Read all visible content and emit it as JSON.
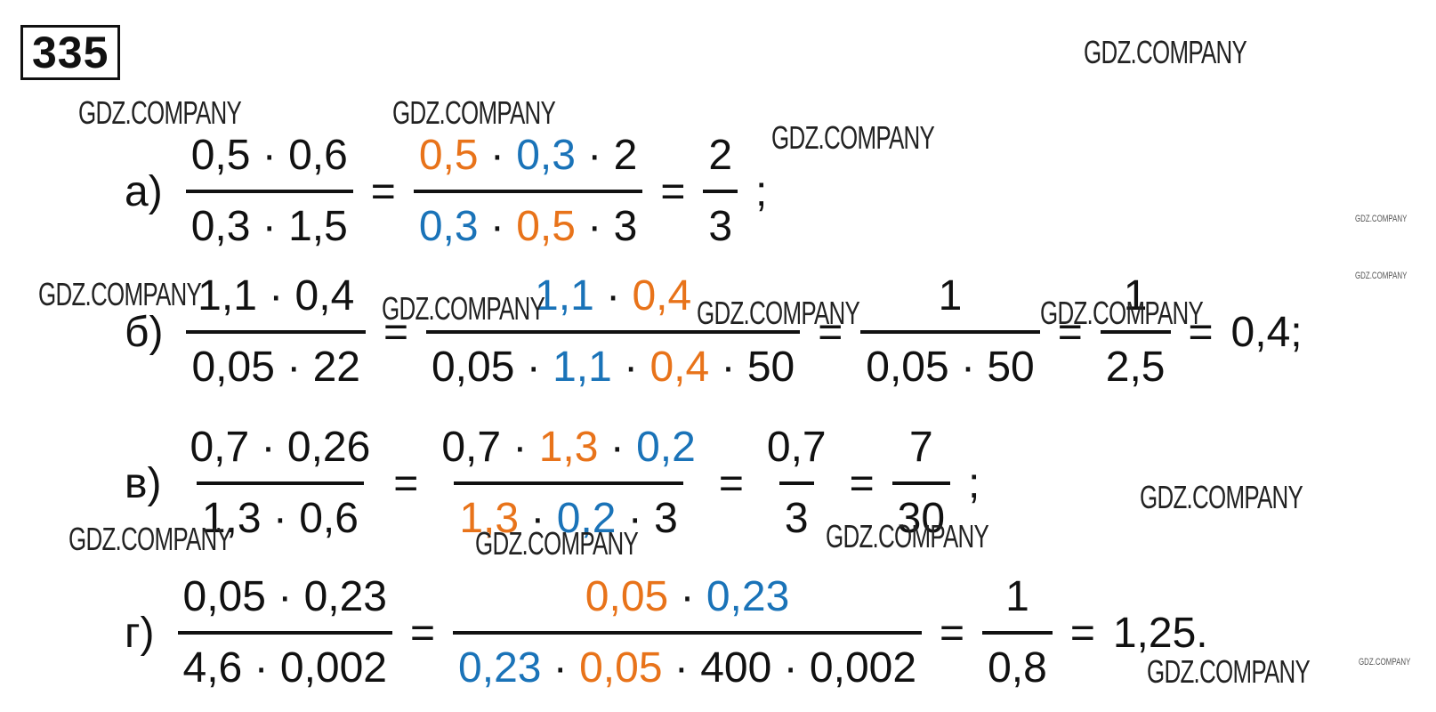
{
  "problem_number": "335",
  "rows": [
    {
      "label": "а)",
      "items": [
        {
          "num": [
            {
              "text": "0,5 · 0,6"
            }
          ],
          "den": [
            {
              "text": "0,3 · 1,5"
            }
          ]
        },
        {
          "text": "="
        },
        {
          "num": [
            {
              "text": "0,5",
              "color": "#e8731a"
            },
            {
              "text": " · "
            },
            {
              "text": "0,3",
              "color": "#1a73b8"
            },
            {
              "text": " · 2"
            }
          ],
          "den": [
            {
              "text": "0,3",
              "color": "#1a73b8"
            },
            {
              "text": " · "
            },
            {
              "text": "0,5",
              "color": "#e8731a"
            },
            {
              "text": " · 3"
            }
          ]
        },
        {
          "text": "="
        },
        {
          "num": [
            {
              "text": "2"
            }
          ],
          "den": [
            {
              "text": "3"
            }
          ]
        },
        {
          "text": ";"
        }
      ]
    },
    {
      "label": "б)",
      "items": [
        {
          "num": [
            {
              "text": "1,1 · 0,4"
            }
          ],
          "den": [
            {
              "text": "0,05 · 22"
            }
          ]
        },
        {
          "text": "="
        },
        {
          "num": [
            {
              "text": "1,1",
              "color": "#1a73b8"
            },
            {
              "text": " · "
            },
            {
              "text": "0,4",
              "color": "#e8731a"
            }
          ],
          "den": [
            {
              "text": "0,05 · "
            },
            {
              "text": "1,1",
              "color": "#1a73b8"
            },
            {
              "text": " · "
            },
            {
              "text": "0,4",
              "color": "#e8731a"
            },
            {
              "text": " · 50"
            }
          ]
        },
        {
          "text": "="
        },
        {
          "num": [
            {
              "text": "1"
            }
          ],
          "den": [
            {
              "text": "0,05 · 50"
            }
          ]
        },
        {
          "text": "="
        },
        {
          "num": [
            {
              "text": "1"
            }
          ],
          "den": [
            {
              "text": "2,5"
            }
          ]
        },
        {
          "text": "="
        },
        {
          "text": "0,4;"
        }
      ]
    },
    {
      "label": "в)",
      "items": [
        {
          "num": [
            {
              "text": "0,7 · 0,26"
            }
          ],
          "den": [
            {
              "text": "1,3 · 0,6"
            }
          ]
        },
        {
          "text": "="
        },
        {
          "num": [
            {
              "text": "0,7 · "
            },
            {
              "text": "1,3",
              "color": "#e8731a"
            },
            {
              "text": " · "
            },
            {
              "text": "0,2",
              "color": "#1a73b8"
            }
          ],
          "den": [
            {
              "text": "1,3",
              "color": "#e8731a"
            },
            {
              "text": " · "
            },
            {
              "text": "0,2",
              "color": "#1a73b8"
            },
            {
              "text": " · 3"
            }
          ]
        },
        {
          "text": "="
        },
        {
          "num": [
            {
              "text": "0,7"
            }
          ],
          "den": [
            {
              "text": "3"
            }
          ]
        },
        {
          "text": "="
        },
        {
          "num": [
            {
              "text": "7"
            }
          ],
          "den": [
            {
              "text": "30"
            }
          ]
        },
        {
          "text": ";"
        }
      ]
    },
    {
      "label": "г)",
      "items": [
        {
          "num": [
            {
              "text": "0,05 · 0,23"
            }
          ],
          "den": [
            {
              "text": "4,6 · 0,002"
            }
          ]
        },
        {
          "text": "="
        },
        {
          "num": [
            {
              "text": "0,05",
              "color": "#e8731a"
            },
            {
              "text": " · "
            },
            {
              "text": "0,23",
              "color": "#1a73b8"
            }
          ],
          "den": [
            {
              "text": "0,23",
              "color": "#1a73b8"
            },
            {
              "text": " · "
            },
            {
              "text": "0,05",
              "color": "#e8731a"
            },
            {
              "text": " · 400 · 0,002"
            }
          ]
        },
        {
          "text": "="
        },
        {
          "num": [
            {
              "text": "1"
            }
          ],
          "den": [
            {
              "text": "0,8"
            }
          ]
        },
        {
          "text": "="
        },
        {
          "text": "1,25."
        }
      ]
    }
  ],
  "watermarks": [
    "GDZ.COMPANY",
    "GDZ.COMPANY",
    "GDZ.COMPANY",
    "GDZ.COMPANY",
    "GDZ.COMPANY",
    "GDZ.COMPANY",
    "GDZ.COMPANY",
    "GDZ.COMPANY",
    "GDZ.COMPANY",
    "GDZ.COMPANY",
    "GDZ.COMPANY",
    "GDZ.COMPANY",
    "GDZ.COMPANY",
    "GDZ.COMPANY",
    "GDZ.COMPANY",
    "GDZ.COMPANY"
  ]
}
